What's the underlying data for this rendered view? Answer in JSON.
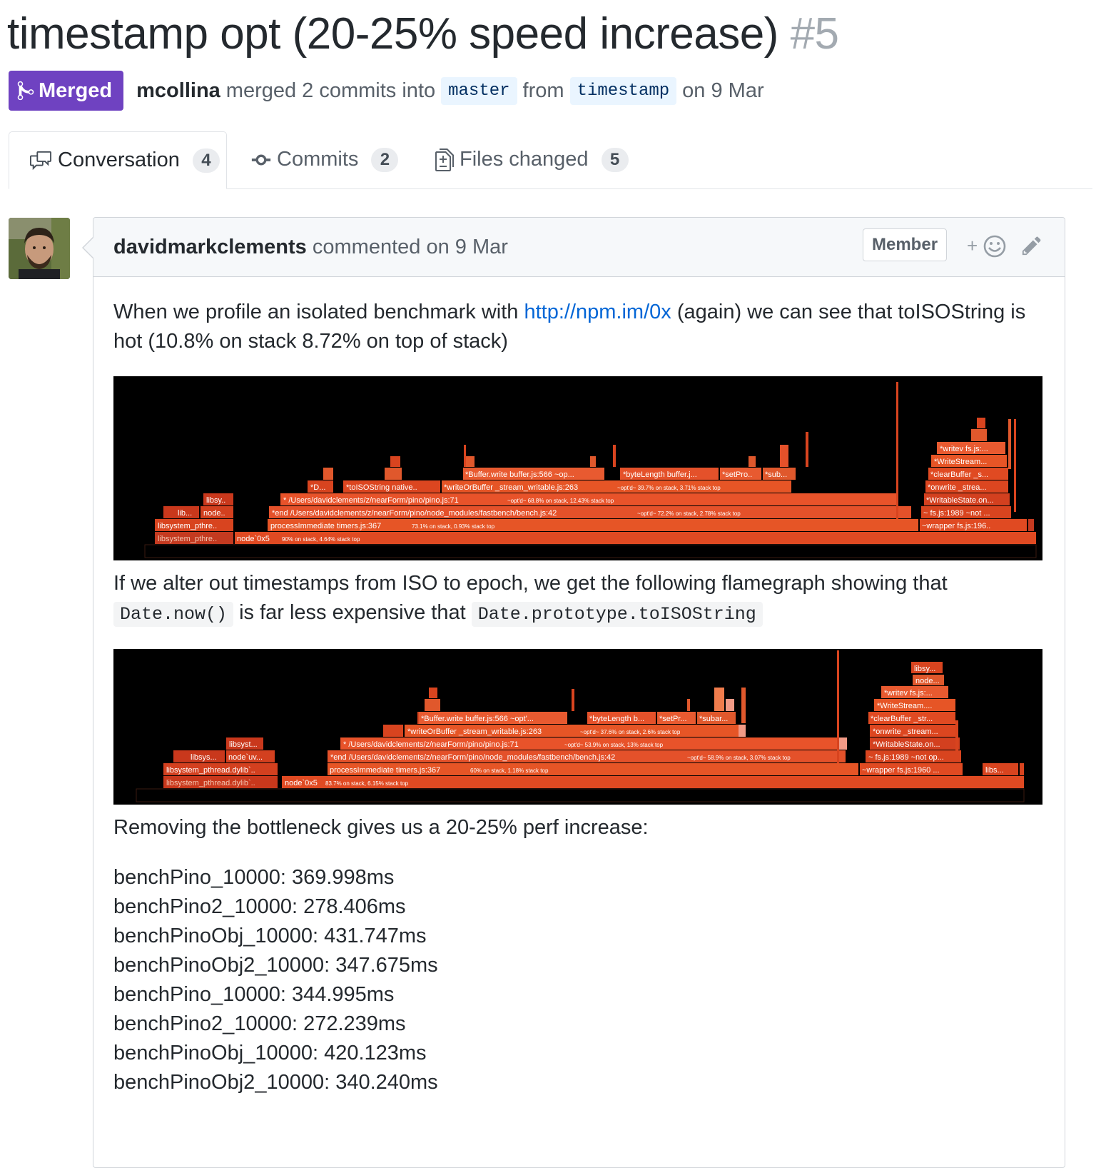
{
  "pr": {
    "title": "timestamp opt (20-25% speed increase)",
    "number": "#5",
    "state": "Merged",
    "author": "mcollina",
    "merge_text": "merged 2 commits into",
    "base_branch": "master",
    "from_text": "from",
    "head_branch": "timestamp",
    "date_text": "on 9 Mar"
  },
  "tabs": [
    {
      "label": "Conversation",
      "count": "4",
      "icon": "comment-discussion-icon",
      "selected": true
    },
    {
      "label": "Commits",
      "count": "2",
      "icon": "git-commit-icon",
      "selected": false
    },
    {
      "label": "Files changed",
      "count": "5",
      "icon": "file-diff-icon",
      "selected": false
    }
  ],
  "comment": {
    "author": "davidmarkclements",
    "action": "commented on 9 Mar",
    "role_badge": "Member",
    "reaction_plus": "+",
    "p1_before": "When we profile an isolated benchmark with ",
    "p1_link": "http://npm.im/0x",
    "p1_after": " (again) we can see that toISOString is hot (10.8% on stack 8.72% on top of stack)",
    "p2_before": "If we alter out timestamps from ISO to epoch, we get the following flamegraph showing that ",
    "p2_code1": "Date.now()",
    "p2_mid": " is far less expensive that ",
    "p2_code2": "Date.prototype.toISOString",
    "p3": "Removing the bottleneck gives us a 20-25% perf increase:",
    "bench_lines": [
      "benchPino_10000: 369.998ms",
      "benchPino2_10000: 278.406ms",
      "benchPinoObj_10000: 431.747ms",
      "benchPinoObj2_10000: 347.675ms",
      "benchPino_10000: 344.995ms",
      "benchPino2_10000: 272.239ms",
      "benchPinoObj_10000: 420.123ms",
      "benchPinoObj2_10000: 340.240ms"
    ]
  },
  "flamegraph1": {
    "labels": {
      "node_0x5": "node`0x5",
      "node_0x5_stat": "90% on stack, 4.64% stack top",
      "libsystem_a": "libsystem_pthre..",
      "libsystem_b": "libsystem_pthre..",
      "lib": "lib...",
      "node": "node..",
      "libsy": "libsy..",
      "process_immediate": "processImmediate timers.js:367",
      "process_immediate_stat": "73.1% on stack, 0.93% stack top",
      "end": "*end /Users/davidclements/z/nearForm/pino/node_modules/fastbench/bench.js:42",
      "end_stat": "~opt'd~ 72.2% on stack, 2.78% stack top",
      "pino": "* /Users/davidclements/z/nearForm/pino/pino.js:71",
      "pino_stat": "~opt'd~ 68.8% on stack, 12.43% stack top",
      "d": "*D...",
      "toiso": "*toISOString native..",
      "write_or_buffer": "*writeOrBuffer _stream_writable.js:263",
      "write_or_buffer_stat": "~opt'd~ 39.7% on stack, 3.71% stack top",
      "buffer_write": "*Buffer.write buffer.js:566 ~op...",
      "byte_length": "*byteLength buffer.j...",
      "set_pro": "*setPro..",
      "sub": "*sub...",
      "wrapper": "~wrapper fs.js:196..",
      "fs_1989": "~ fs.js:1989 ~not ...",
      "writable_state": "*WritableState.on...",
      "onwrite": "*onwrite _strea...",
      "clear_buffer": "*clearBuffer _s...",
      "write_stream": "*WriteStream...",
      "writev": "*writev fs.js:..."
    }
  },
  "flamegraph2": {
    "labels": {
      "node_0x5": "node`0x5",
      "node_0x5_stat": "83.7% on stack, 6.15% stack top",
      "libsystem_a": "libsystem_pthread.dylib`..",
      "libsystem_b": "libsystem_pthread.dylib`..",
      "libsys": "libsys...",
      "node_uv": "node`uv...",
      "libsyst": "libsyst...",
      "process_immediate": "processImmediate timers.js:367",
      "process_immediate_stat": "60% on stack, 1.18% stack top",
      "end": "*end /Users/davidclements/z/nearForm/pino/node_modules/fastbench/bench.js:42",
      "end_stat": "~opt'd~ 58.9% on stack, 3.07% stack top",
      "pino": "* /Users/davidclements/z/nearForm/pino/pino.js:71",
      "pino_stat": "~opt'd~ 53.9% on stack, 13% stack top",
      "write_or_buffer": "*writeOrBuffer _stream_writable.js:263",
      "write_or_buffer_stat": "~opt'd~ 37.6% on stack, 2.6% stack top",
      "buffer_write": "*Buffer.write buffer.js:566 ~opt'...",
      "byte_length": "*byteLength b...",
      "set_pr": "*setPr...",
      "subar": "*subar...",
      "wrapper": "~wrapper fs.js:1960 ...",
      "libs": "libs...",
      "fs_1989": "~ fs.js:1989 ~not op...",
      "writable_state": "*WritableState.on...",
      "onwrite": "*onwrite _stream...",
      "clear_buffer": "*clearBuffer _str...",
      "write_stream": "*WriteStream....",
      "writev": "*writev fs.js:...",
      "node": "node...",
      "libsy": "libsy..."
    }
  },
  "colors": {
    "merged": "#6f42c1",
    "link": "#0366d6",
    "flame_dark": "#d13b1d",
    "flame_mid": "#e8532a",
    "flame_light": "#f07c4c",
    "flame_pale": "#f29a86"
  }
}
